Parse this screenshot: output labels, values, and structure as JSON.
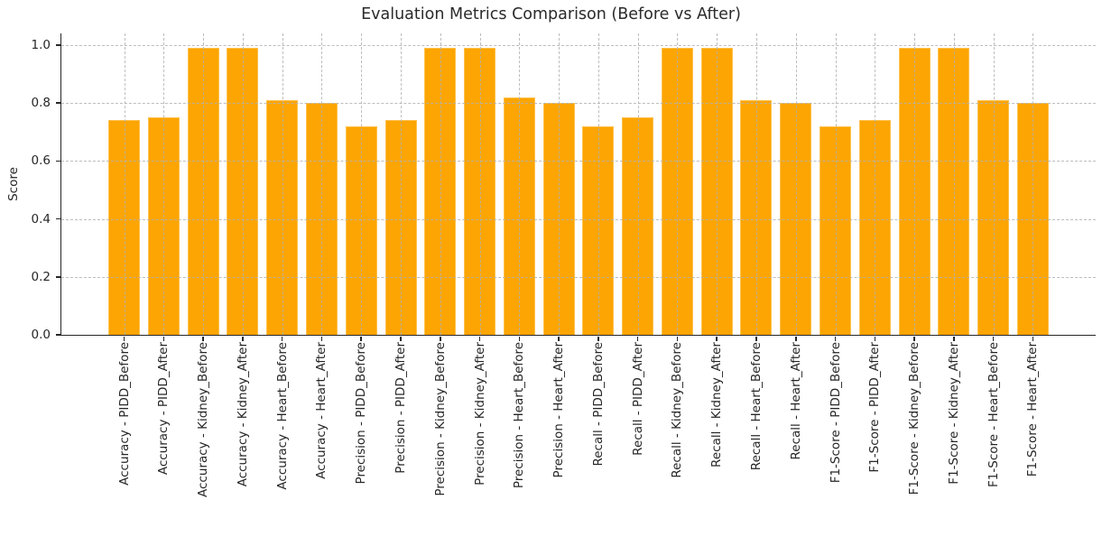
{
  "title": "Evaluation Metrics Comparison (Before vs After)",
  "chart_data": {
    "type": "bar",
    "title": "Evaluation Metrics Comparison (Before vs After)",
    "xlabel": "",
    "ylabel": "Score",
    "ylim": [
      0,
      1.04
    ],
    "yticks": [
      0.0,
      0.2,
      0.4,
      0.6,
      0.8,
      1.0
    ],
    "grid": true,
    "legend": "none",
    "bar_color": "#fca503",
    "bar_edge_color": "#ffc14d",
    "categories": [
      "Accuracy - PIDD_Before",
      "Accuracy - PIDD_After",
      "Accuracy - Kidney_Before",
      "Accuracy - Kidney_After",
      "Accuracy - Heart_Before",
      "Accuracy - Heart_After",
      "Precision - PIDD_Before",
      "Precision - PIDD_After",
      "Precision - Kidney_Before",
      "Precision - Kidney_After",
      "Precision - Heart_Before",
      "Precision - Heart_After",
      "Recall - PIDD_Before",
      "Recall - PIDD_After",
      "Recall - Kidney_Before",
      "Recall - Kidney_After",
      "Recall - Heart_Before",
      "Recall - Heart_After",
      "F1-Score - PIDD_Before",
      "F1-Score - PIDD_After",
      "F1-Score - Kidney_Before",
      "F1-Score - Kidney_After",
      "F1-Score - Heart_Before",
      "F1-Score - Heart_After"
    ],
    "values": [
      0.74,
      0.75,
      0.99,
      0.99,
      0.81,
      0.8,
      0.72,
      0.74,
      0.99,
      0.99,
      0.82,
      0.8,
      0.72,
      0.75,
      0.99,
      0.99,
      0.81,
      0.8,
      0.72,
      0.74,
      0.99,
      0.99,
      0.81,
      0.8
    ]
  }
}
